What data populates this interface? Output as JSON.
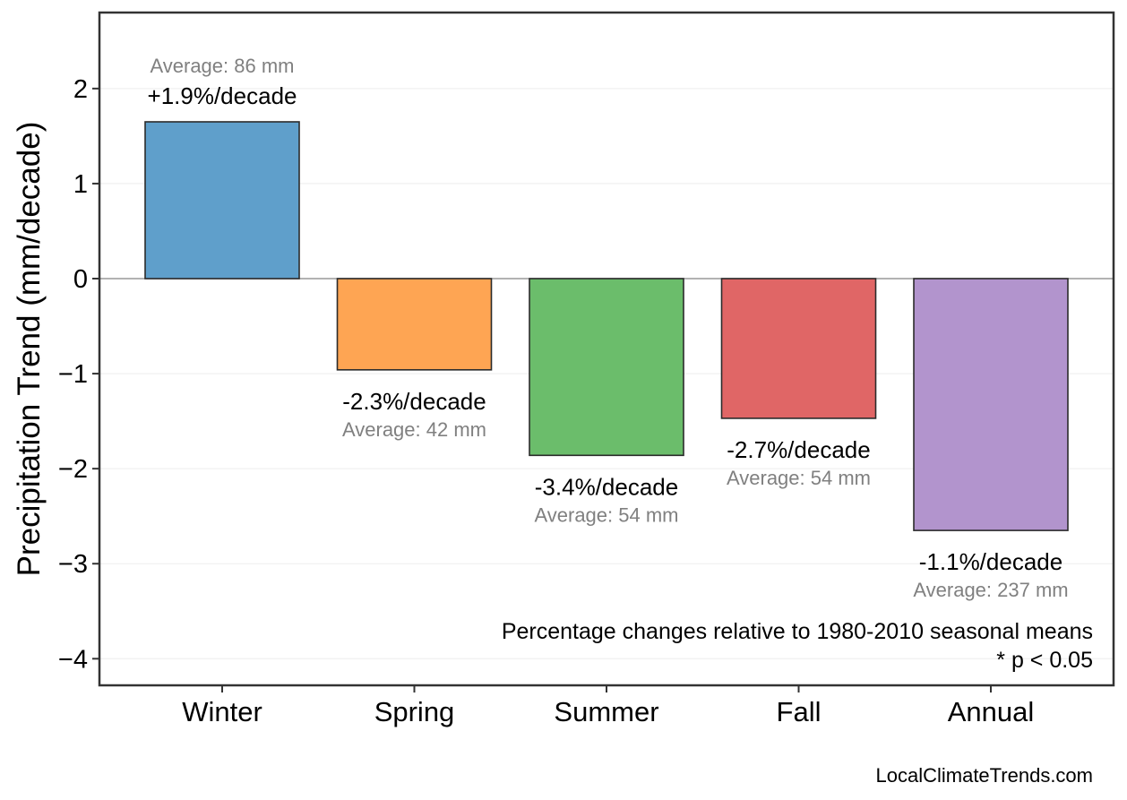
{
  "chart_data": {
    "type": "bar",
    "categories": [
      "Winter",
      "Spring",
      "Summer",
      "Fall",
      "Annual"
    ],
    "values": [
      1.65,
      -0.96,
      -1.86,
      -1.47,
      -2.65
    ],
    "trend_labels": [
      "+1.9%/decade",
      "-2.3%/decade",
      "-3.4%/decade",
      "-2.7%/decade",
      "-1.1%/decade"
    ],
    "average_labels": [
      "Average: 86 mm",
      "Average: 42 mm",
      "Average: 54 mm",
      "Average: 54 mm",
      "Average: 237 mm"
    ],
    "colors": [
      "#5f9fcb",
      "#fea553",
      "#6bbd6b",
      "#e06666",
      "#b294cd"
    ],
    "ylabel": "Precipitation Trend (mm/decade)",
    "ylim": [
      -4.28,
      2.8
    ],
    "yticks": [
      2,
      1,
      0,
      -1,
      -2,
      -3,
      -4
    ],
    "ytick_labels": [
      "2",
      "1",
      "0",
      "−1",
      "−2",
      "−3",
      "−4"
    ],
    "grid": true,
    "notes": [
      "Percentage changes relative to 1980-2010 seasonal means",
      "* p < 0.05"
    ],
    "source": "LocalClimateTrends.com"
  }
}
